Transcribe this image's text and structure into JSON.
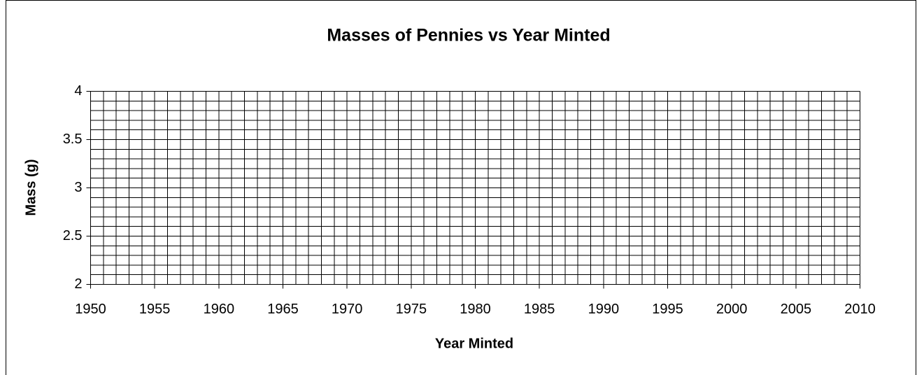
{
  "chart_data": {
    "type": "scatter",
    "title": "Masses of Pennies vs Year Minted",
    "x_label": "Year Minted",
    "y_label": "Mass (g)",
    "xlim": [
      1950,
      2010
    ],
    "xticks": [
      1950,
      1955,
      1960,
      1965,
      1970,
      1975,
      1980,
      1985,
      1990,
      1995,
      2000,
      2005,
      2010
    ],
    "ylim": [
      2,
      4
    ],
    "yticks": [
      2,
      2.5,
      3,
      3.5,
      4
    ],
    "grid": true,
    "minor_grid": {
      "x": 1,
      "y": 0.1
    },
    "series": []
  }
}
